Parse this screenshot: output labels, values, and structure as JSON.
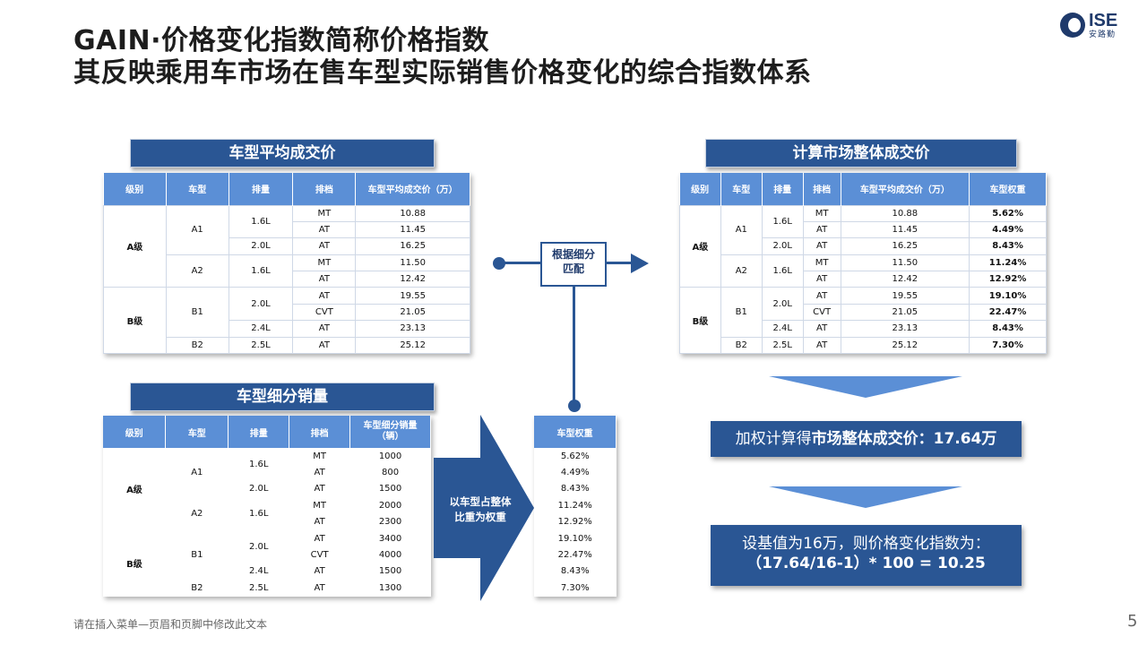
{
  "title": {
    "line1": "GAIN·价格变化指数简称价格指数",
    "line2": "其反映乘用车市场在售车型实际销售价格变化的综合指数体系"
  },
  "logo": {
    "text": "ISE",
    "sub": "安路勤"
  },
  "left_top": {
    "banner": "车型平均成交价",
    "headers": [
      "级别",
      "车型",
      "排量",
      "排档",
      "车型平均成交价（万）"
    ],
    "rows": [
      [
        "A级",
        "A1",
        "1.6L",
        "MT",
        "10.88"
      ],
      [
        "",
        "",
        "",
        "AT",
        "11.45"
      ],
      [
        "",
        "",
        "2.0L",
        "AT",
        "16.25"
      ],
      [
        "",
        "A2",
        "1.6L",
        "MT",
        "11.50"
      ],
      [
        "",
        "",
        "",
        "AT",
        "12.42"
      ],
      [
        "B级",
        "B1",
        "2.0L",
        "AT",
        "19.55"
      ],
      [
        "",
        "",
        "",
        "CVT",
        "21.05"
      ],
      [
        "",
        "",
        "2.4L",
        "AT",
        "23.13"
      ],
      [
        "",
        "B2",
        "2.5L",
        "AT",
        "25.12"
      ]
    ]
  },
  "left_bottom": {
    "banner": "车型细分销量",
    "headers": [
      "级别",
      "车型",
      "排量",
      "排档",
      "车型细分销量\n（辆）"
    ],
    "rows": [
      [
        "A级",
        "A1",
        "1.6L",
        "MT",
        "1000"
      ],
      [
        "",
        "",
        "",
        "AT",
        "800"
      ],
      [
        "",
        "",
        "2.0L",
        "AT",
        "1500"
      ],
      [
        "",
        "A2",
        "1.6L",
        "MT",
        "2000"
      ],
      [
        "",
        "",
        "",
        "AT",
        "2300"
      ],
      [
        "B级",
        "B1",
        "2.0L",
        "AT",
        "3400"
      ],
      [
        "",
        "",
        "",
        "CVT",
        "4000"
      ],
      [
        "",
        "",
        "2.4L",
        "AT",
        "1500"
      ],
      [
        "",
        "B2",
        "2.5L",
        "AT",
        "1300"
      ]
    ]
  },
  "weights": {
    "header": "车型权重",
    "values": [
      "5.62%",
      "4.49%",
      "8.43%",
      "11.24%",
      "12.92%",
      "19.10%",
      "22.47%",
      "8.43%",
      "7.30%"
    ]
  },
  "mid_box": {
    "line1": "根据细分",
    "line2": "匹配"
  },
  "big_arrow": {
    "line1": "以车型占整体",
    "line2": "比重为权重"
  },
  "right_top": {
    "banner": "计算市场整体成交价",
    "headers": [
      "级别",
      "车型",
      "排量",
      "排档",
      "车型平均成交价（万）",
      "车型权重"
    ],
    "rows": [
      [
        "A级",
        "A1",
        "1.6L",
        "MT",
        "10.88",
        "5.62%"
      ],
      [
        "",
        "",
        "",
        "AT",
        "11.45",
        "4.49%"
      ],
      [
        "",
        "",
        "2.0L",
        "AT",
        "16.25",
        "8.43%"
      ],
      [
        "",
        "A2",
        "1.6L",
        "MT",
        "11.50",
        "11.24%"
      ],
      [
        "",
        "",
        "",
        "AT",
        "12.42",
        "12.92%"
      ],
      [
        "B级",
        "B1",
        "2.0L",
        "AT",
        "19.55",
        "19.10%"
      ],
      [
        "",
        "",
        "",
        "CVT",
        "21.05",
        "22.47%"
      ],
      [
        "",
        "",
        "2.4L",
        "AT",
        "23.13",
        "8.43%"
      ],
      [
        "",
        "B2",
        "2.5L",
        "AT",
        "25.12",
        "7.30%"
      ]
    ]
  },
  "result1": {
    "prefix": "加权计算得",
    "bold": "市场整体成交价：17.64万"
  },
  "result2": {
    "line1": "设基值为16万，则价格变化指数为：",
    "line2": "（17.64/16-1）* 100 = 10.25"
  },
  "footer": "请在插入菜单—页眉和页脚中修改此文本",
  "page_number": "5",
  "colors": {
    "dark_blue": "#2a5694",
    "header_blue": "#5b8fd6",
    "light_blue": "#5b8fd6"
  }
}
